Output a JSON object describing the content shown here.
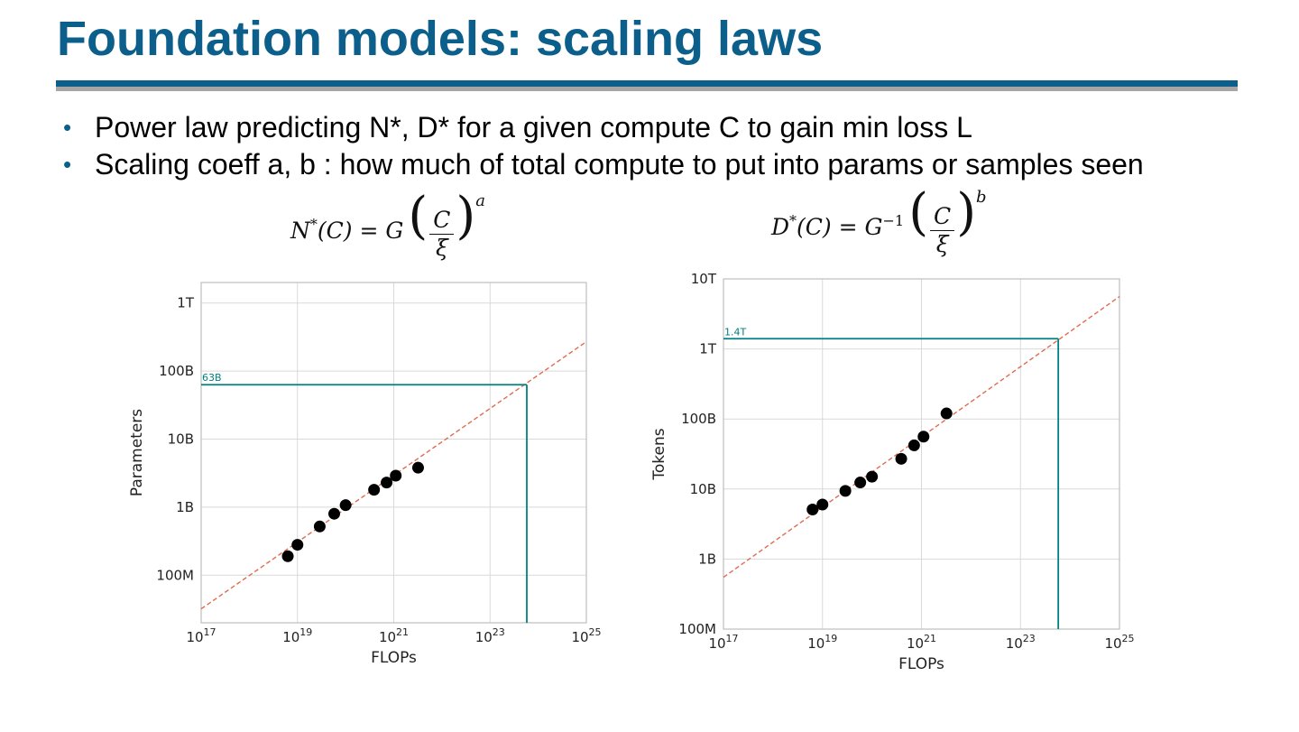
{
  "slide": {
    "title": "Foundation models: scaling laws",
    "bullets": [
      "Power law predicting N*, D* for a given compute C to gain min loss L",
      "Scaling coeff a, b : how much of total compute to put into params or samples seen"
    ],
    "bullet_glyph": "•",
    "formula_n": {
      "lhs": "N",
      "star": "*",
      "arg": "(C) = G",
      "num": "C",
      "den": "ξ",
      "exp": "a"
    },
    "formula_d": {
      "lhs": "D",
      "star": "*",
      "arg": "(C) = G",
      "inv": "−1",
      "num": "C",
      "den": "ξ",
      "exp": "b"
    },
    "colors": {
      "title": "#0b5f8a",
      "rule_blue": "#0b5f8a",
      "rule_grey": "#a6a6a6",
      "fit_line": "#e06b4f",
      "marker": "#008080",
      "points": "#000000",
      "grid": "#d9d9d9"
    }
  },
  "chart_data": [
    {
      "type": "scatter",
      "xlabel": "FLOPs",
      "ylabel": "Parameters",
      "xscale": "log",
      "yscale": "log",
      "xlim": [
        1e+17,
        1e+25
      ],
      "ylim": [
        20000000.0,
        2000000000000.0
      ],
      "xticks": [
        {
          "value": 1e+17,
          "base": "10",
          "exp": "17"
        },
        {
          "value": 1e+19,
          "base": "10",
          "exp": "19"
        },
        {
          "value": 1e+21,
          "base": "10",
          "exp": "21"
        },
        {
          "value": 1e+23,
          "base": "10",
          "exp": "23"
        },
        {
          "value": 1e+25,
          "base": "10",
          "exp": "25"
        }
      ],
      "yticks": [
        {
          "value": 100000000.0,
          "label": "100M"
        },
        {
          "value": 1000000000.0,
          "label": "1B"
        },
        {
          "value": 10000000000.0,
          "label": "10B"
        },
        {
          "value": 100000000000.0,
          "label": "100B"
        },
        {
          "value": 1000000000000.0,
          "label": "1T"
        }
      ],
      "grid": true,
      "points": [
        {
          "x": 6.3e+18,
          "y": 190000000.0
        },
        {
          "x": 1e+19,
          "y": 280000000.0
        },
        {
          "x": 2.9e+19,
          "y": 520000000.0
        },
        {
          "x": 5.8e+19,
          "y": 800000000.0
        },
        {
          "x": 1e+20,
          "y": 1070000000.0
        },
        {
          "x": 3.9e+20,
          "y": 1800000000.0
        },
        {
          "x": 7.1e+20,
          "y": 2300000000.0
        },
        {
          "x": 1.1e+21,
          "y": 2900000000.0
        },
        {
          "x": 3.2e+21,
          "y": 3800000000.0
        }
      ],
      "fit_line": {
        "from": [
          1e+17,
          32000000.0
        ],
        "to": [
          1e+25,
          270000000000.0
        ],
        "style": "dashed"
      },
      "marker": {
        "x": 5.8e+23,
        "y": 63000000000.0,
        "label": "63B"
      }
    },
    {
      "type": "scatter",
      "xlabel": "FLOPs",
      "ylabel": "Tokens",
      "xscale": "log",
      "yscale": "log",
      "xlim": [
        1e+17,
        1e+25
      ],
      "ylim": [
        100000000.0,
        10000000000000.0
      ],
      "xticks": [
        {
          "value": 1e+17,
          "base": "10",
          "exp": "17"
        },
        {
          "value": 1e+19,
          "base": "10",
          "exp": "19"
        },
        {
          "value": 1e+21,
          "base": "10",
          "exp": "21"
        },
        {
          "value": 1e+23,
          "base": "10",
          "exp": "23"
        },
        {
          "value": 1e+25,
          "base": "10",
          "exp": "25"
        }
      ],
      "yticks": [
        {
          "value": 100000000.0,
          "label": "100M"
        },
        {
          "value": 1000000000.0,
          "label": "1B"
        },
        {
          "value": 10000000000.0,
          "label": "10B"
        },
        {
          "value": 100000000000.0,
          "label": "100B"
        },
        {
          "value": 1000000000000.0,
          "label": "1T"
        },
        {
          "value": 10000000000000.0,
          "label": "10T"
        }
      ],
      "grid": true,
      "points": [
        {
          "x": 6.3e+18,
          "y": 5100000000.0
        },
        {
          "x": 1e+19,
          "y": 6000000000.0
        },
        {
          "x": 2.9e+19,
          "y": 9400000000.0
        },
        {
          "x": 5.8e+19,
          "y": 12400000000.0
        },
        {
          "x": 1e+20,
          "y": 15000000000.0
        },
        {
          "x": 3.9e+20,
          "y": 27000000000.0
        },
        {
          "x": 7.1e+20,
          "y": 42000000000.0
        },
        {
          "x": 1.1e+21,
          "y": 56000000000.0
        },
        {
          "x": 3.2e+21,
          "y": 120000000000.0
        }
      ],
      "fit_line": {
        "from": [
          1e+17,
          550000000.0
        ],
        "to": [
          1e+25,
          5600000000000.0
        ],
        "style": "dashed"
      },
      "marker": {
        "x": 5.8e+23,
        "y": 1400000000000.0,
        "label": "1.4T"
      }
    }
  ]
}
